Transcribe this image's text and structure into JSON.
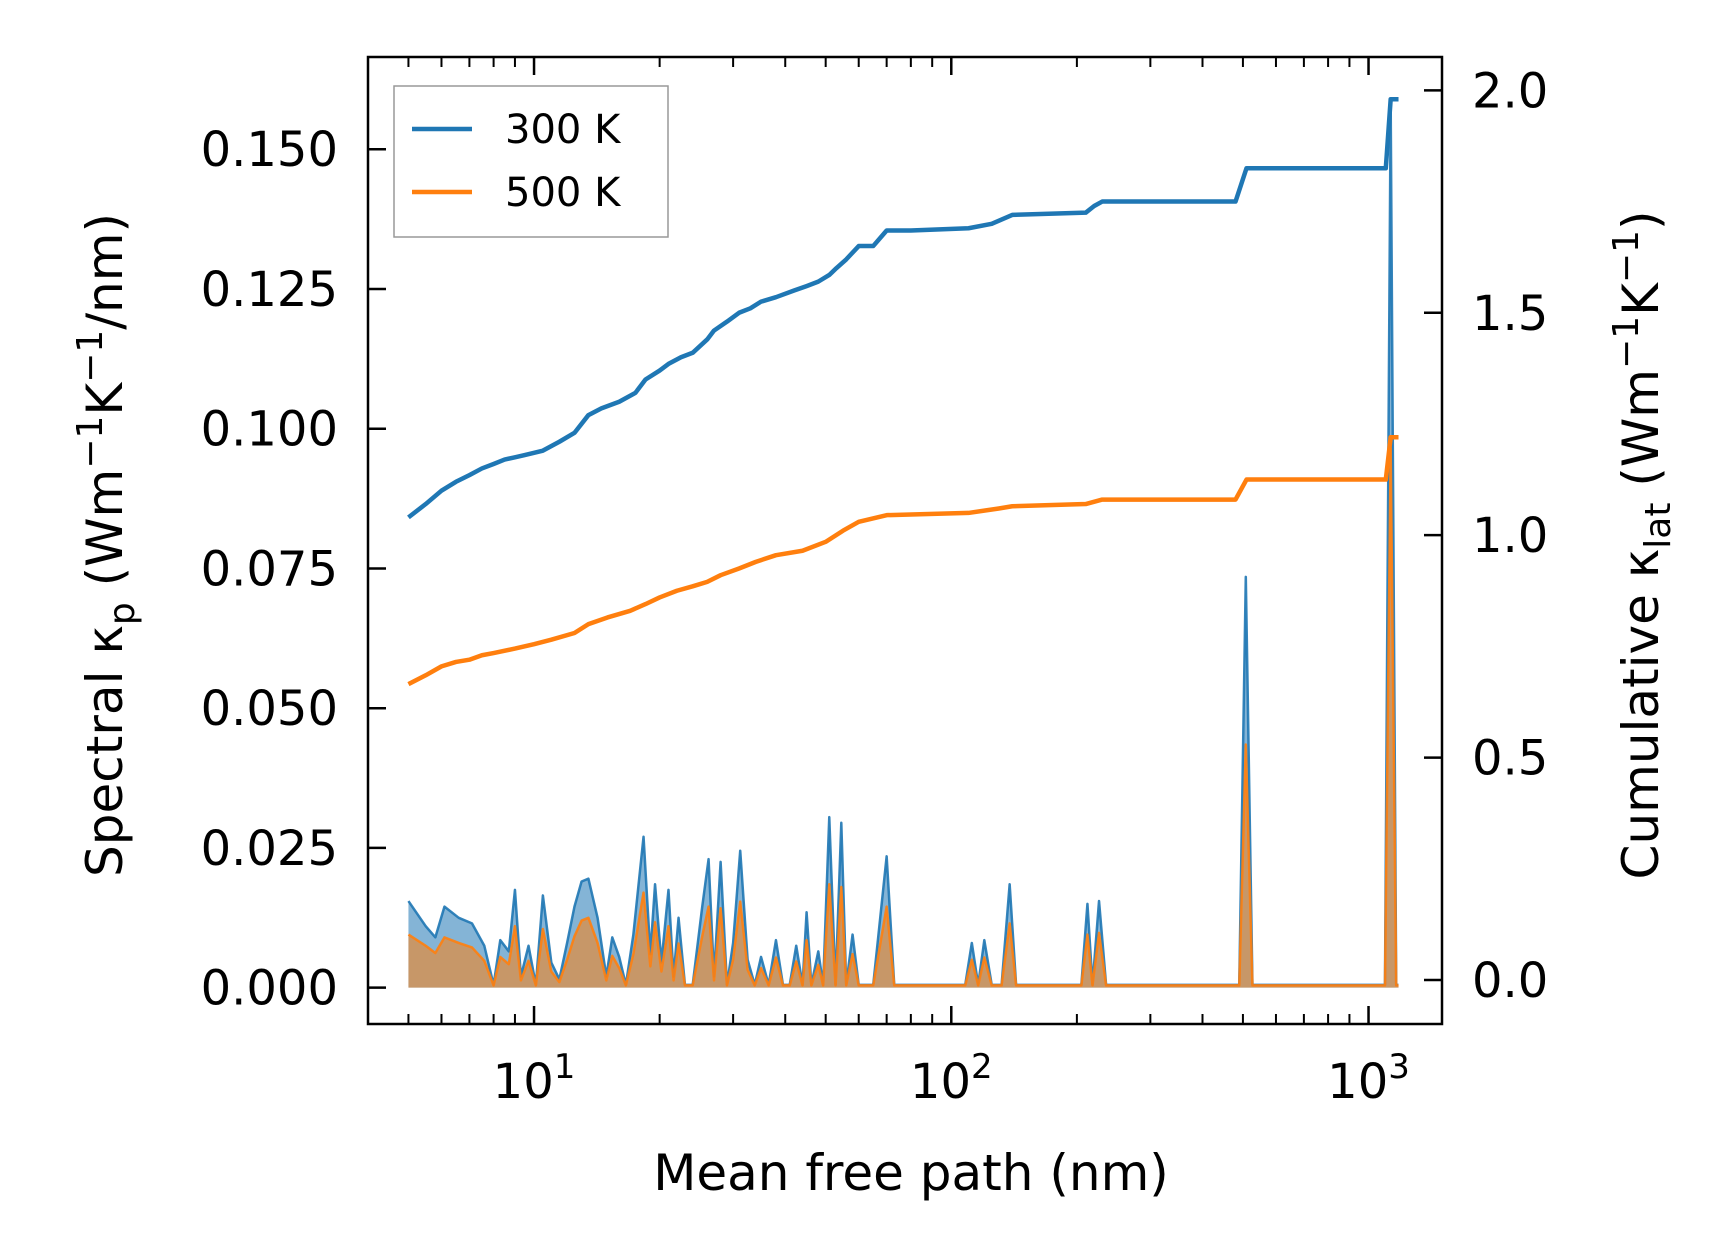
{
  "chart_data": {
    "type": "line",
    "xscale": "log",
    "xlabel": "Mean free path (nm)",
    "xlim": [
      4.0,
      1500
    ],
    "x_ticks": [
      {
        "value": 10,
        "base": "10",
        "exp": "1"
      },
      {
        "value": 100,
        "base": "10",
        "exp": "2"
      },
      {
        "value": 1000,
        "base": "10",
        "exp": "3"
      }
    ],
    "ylabel_left": {
      "main": "Spectral κ",
      "sub": "p",
      "unit_a": " (Wm",
      "sup1": "−1",
      "unit_b": "K",
      "sup2": "−1",
      "unit_c": "/nm)"
    },
    "ylim_left": [
      -0.0065,
      0.1665
    ],
    "yticks_left": [
      "0.000",
      "0.025",
      "0.050",
      "0.075",
      "0.100",
      "0.125",
      "0.150"
    ],
    "ylabel_right": {
      "main": "Cumulative κ",
      "sub": "lat",
      "unit_a": " (Wm",
      "sup1": "−1",
      "unit_b": "K",
      "sup2": "−1",
      "unit_c": ")"
    },
    "ylim_right": [
      -0.099,
      2.075
    ],
    "yticks_right": [
      "0.0",
      "0.5",
      "1.0",
      "1.5",
      "2.0"
    ],
    "legend": {
      "placement": "top-left",
      "entries": [
        {
          "label": "300 K",
          "color": "#1f77b4"
        },
        {
          "label": "500 K",
          "color": "#ff7f0e"
        }
      ]
    },
    "cumulative_series": [
      {
        "name": "300 K",
        "color": "#1f77b4",
        "points": [
          [
            5.0,
            1.04
          ],
          [
            5.5,
            1.07
          ],
          [
            6.0,
            1.1
          ],
          [
            6.5,
            1.12
          ],
          [
            7.0,
            1.135
          ],
          [
            7.5,
            1.15
          ],
          [
            8.0,
            1.16
          ],
          [
            8.5,
            1.17
          ],
          [
            9.0,
            1.175
          ],
          [
            9.5,
            1.18
          ],
          [
            10.5,
            1.19
          ],
          [
            11.5,
            1.21
          ],
          [
            12.5,
            1.23
          ],
          [
            13.5,
            1.27
          ],
          [
            14.5,
            1.285
          ],
          [
            16.0,
            1.3
          ],
          [
            17.5,
            1.32
          ],
          [
            18.5,
            1.35
          ],
          [
            20.0,
            1.37
          ],
          [
            21.0,
            1.385
          ],
          [
            22.5,
            1.4
          ],
          [
            24.0,
            1.41
          ],
          [
            26.0,
            1.44
          ],
          [
            27.0,
            1.46
          ],
          [
            29.0,
            1.48
          ],
          [
            31.0,
            1.5
          ],
          [
            33.0,
            1.51
          ],
          [
            35.0,
            1.525
          ],
          [
            38.0,
            1.535
          ],
          [
            42.0,
            1.55
          ],
          [
            45.0,
            1.56
          ],
          [
            48.0,
            1.57
          ],
          [
            51.0,
            1.585
          ],
          [
            53.0,
            1.6
          ],
          [
            56.0,
            1.62
          ],
          [
            60.0,
            1.65
          ],
          [
            65.0,
            1.65
          ],
          [
            70.0,
            1.685
          ],
          [
            80.0,
            1.685
          ],
          [
            110.0,
            1.69
          ],
          [
            125.0,
            1.7
          ],
          [
            140.0,
            1.72
          ],
          [
            210.0,
            1.725
          ],
          [
            220.0,
            1.74
          ],
          [
            230.0,
            1.75
          ],
          [
            480.0,
            1.75
          ],
          [
            510.0,
            1.825
          ],
          [
            1100.0,
            1.825
          ],
          [
            1130.0,
            1.98
          ],
          [
            1180.0,
            1.98
          ]
        ]
      },
      {
        "name": "500 K",
        "color": "#ff7f0e",
        "points": [
          [
            5.0,
            0.665
          ],
          [
            5.5,
            0.685
          ],
          [
            6.0,
            0.705
          ],
          [
            6.5,
            0.715
          ],
          [
            7.0,
            0.72
          ],
          [
            7.5,
            0.73
          ],
          [
            8.0,
            0.735
          ],
          [
            9.0,
            0.745
          ],
          [
            10.0,
            0.755
          ],
          [
            11.0,
            0.765
          ],
          [
            12.5,
            0.78
          ],
          [
            13.5,
            0.8
          ],
          [
            15.0,
            0.815
          ],
          [
            17.0,
            0.83
          ],
          [
            18.5,
            0.845
          ],
          [
            20.0,
            0.86
          ],
          [
            22.0,
            0.875
          ],
          [
            24.0,
            0.885
          ],
          [
            26.0,
            0.895
          ],
          [
            28.0,
            0.91
          ],
          [
            31.0,
            0.925
          ],
          [
            34.0,
            0.94
          ],
          [
            38.0,
            0.955
          ],
          [
            44.0,
            0.965
          ],
          [
            50.0,
            0.985
          ],
          [
            55.0,
            1.01
          ],
          [
            60.0,
            1.03
          ],
          [
            70.0,
            1.045
          ],
          [
            110.0,
            1.05
          ],
          [
            130.0,
            1.06
          ],
          [
            140.0,
            1.065
          ],
          [
            210.0,
            1.07
          ],
          [
            230.0,
            1.08
          ],
          [
            480.0,
            1.08
          ],
          [
            510.0,
            1.125
          ],
          [
            1100.0,
            1.125
          ],
          [
            1130.0,
            1.22
          ],
          [
            1180.0,
            1.22
          ]
        ]
      }
    ],
    "spectral_series": [
      {
        "name": "300 K",
        "color": "#1f77b4",
        "points": [
          [
            5.0,
            0.0155
          ],
          [
            5.5,
            0.011
          ],
          [
            5.8,
            0.009
          ],
          [
            6.1,
            0.0145
          ],
          [
            6.6,
            0.0125
          ],
          [
            7.1,
            0.0115
          ],
          [
            7.6,
            0.0075
          ],
          [
            8.0,
            0.0005
          ],
          [
            8.3,
            0.0085
          ],
          [
            8.7,
            0.0065
          ],
          [
            9.0,
            0.0175
          ],
          [
            9.3,
            0.002
          ],
          [
            9.7,
            0.0075
          ],
          [
            10.1,
            0.0005
          ],
          [
            10.5,
            0.0165
          ],
          [
            11.0,
            0.0045
          ],
          [
            11.5,
            0.0015
          ],
          [
            12.0,
            0.008
          ],
          [
            12.5,
            0.0145
          ],
          [
            13.0,
            0.019
          ],
          [
            13.5,
            0.0195
          ],
          [
            14.2,
            0.0125
          ],
          [
            14.9,
            0.002
          ],
          [
            15.4,
            0.009
          ],
          [
            16.0,
            0.0055
          ],
          [
            16.6,
            0.0005
          ],
          [
            17.3,
            0.0095
          ],
          [
            18.3,
            0.027
          ],
          [
            19.0,
            0.006
          ],
          [
            19.5,
            0.0185
          ],
          [
            20.2,
            0.0045
          ],
          [
            21.0,
            0.0175
          ],
          [
            21.6,
            0.002
          ],
          [
            22.2,
            0.0125
          ],
          [
            23.0,
            0.0005
          ],
          [
            24.0,
            0.0005
          ],
          [
            25.3,
            0.0145
          ],
          [
            26.2,
            0.023
          ],
          [
            27.0,
            0.002
          ],
          [
            28.0,
            0.0225
          ],
          [
            29.0,
            0.0005
          ],
          [
            30.0,
            0.008
          ],
          [
            31.2,
            0.0245
          ],
          [
            32.5,
            0.005
          ],
          [
            33.8,
            0.0005
          ],
          [
            35.0,
            0.0055
          ],
          [
            36.5,
            0.0005
          ],
          [
            38.0,
            0.0085
          ],
          [
            39.5,
            0.0005
          ],
          [
            41.0,
            0.0005
          ],
          [
            42.5,
            0.0075
          ],
          [
            44.0,
            0.0005
          ],
          [
            45.0,
            0.0135
          ],
          [
            46.2,
            0.0005
          ],
          [
            48.0,
            0.0065
          ],
          [
            49.3,
            0.0005
          ],
          [
            51.0,
            0.0305
          ],
          [
            52.8,
            0.0005
          ],
          [
            54.5,
            0.0295
          ],
          [
            56.0,
            0.0005
          ],
          [
            58.0,
            0.0095
          ],
          [
            60.0,
            0.0005
          ],
          [
            62.0,
            0.0005
          ],
          [
            65.0,
            0.0005
          ],
          [
            70.0,
            0.0235
          ],
          [
            73.0,
            0.0005
          ],
          [
            75.0,
            0.0005
          ],
          [
            108.0,
            0.0005
          ],
          [
            112.0,
            0.008
          ],
          [
            116.0,
            0.0005
          ],
          [
            120.0,
            0.0085
          ],
          [
            125.0,
            0.0005
          ],
          [
            132.0,
            0.0005
          ],
          [
            138.0,
            0.0185
          ],
          [
            143.0,
            0.0005
          ],
          [
            205.0,
            0.0005
          ],
          [
            212.0,
            0.015
          ],
          [
            218.0,
            0.0005
          ],
          [
            226.0,
            0.0155
          ],
          [
            235.0,
            0.0005
          ],
          [
            490.0,
            0.0005
          ],
          [
            508.0,
            0.0735
          ],
          [
            527.0,
            0.0005
          ],
          [
            1095.0,
            0.0005
          ],
          [
            1130.0,
            0.1585
          ],
          [
            1165.0,
            0.0005
          ],
          [
            1180.0,
            0.0005
          ]
        ]
      },
      {
        "name": "500 K",
        "color": "#ff7f0e",
        "points": [
          [
            5.0,
            0.0095
          ],
          [
            5.5,
            0.0075
          ],
          [
            5.8,
            0.0062
          ],
          [
            6.1,
            0.009
          ],
          [
            6.6,
            0.008
          ],
          [
            7.1,
            0.0072
          ],
          [
            7.6,
            0.0048
          ],
          [
            8.0,
            0.0004
          ],
          [
            8.3,
            0.0055
          ],
          [
            8.7,
            0.0042
          ],
          [
            9.0,
            0.011
          ],
          [
            9.3,
            0.0013
          ],
          [
            9.7,
            0.0048
          ],
          [
            10.1,
            0.0004
          ],
          [
            10.5,
            0.0105
          ],
          [
            11.0,
            0.0029
          ],
          [
            11.5,
            0.001
          ],
          [
            12.0,
            0.005
          ],
          [
            12.5,
            0.0092
          ],
          [
            13.0,
            0.012
          ],
          [
            13.5,
            0.0125
          ],
          [
            14.2,
            0.008
          ],
          [
            14.9,
            0.0013
          ],
          [
            15.4,
            0.0057
          ],
          [
            16.0,
            0.0035
          ],
          [
            16.6,
            0.0004
          ],
          [
            17.3,
            0.006
          ],
          [
            18.3,
            0.017
          ],
          [
            19.0,
            0.0038
          ],
          [
            19.5,
            0.0117
          ],
          [
            20.2,
            0.0029
          ],
          [
            21.0,
            0.011
          ],
          [
            21.6,
            0.0013
          ],
          [
            22.2,
            0.0079
          ],
          [
            23.0,
            0.0004
          ],
          [
            24.0,
            0.0004
          ],
          [
            25.3,
            0.0092
          ],
          [
            26.2,
            0.0145
          ],
          [
            27.0,
            0.0013
          ],
          [
            28.0,
            0.0142
          ],
          [
            29.0,
            0.0004
          ],
          [
            30.0,
            0.005
          ],
          [
            31.2,
            0.0154
          ],
          [
            32.5,
            0.0032
          ],
          [
            33.8,
            0.0004
          ],
          [
            35.0,
            0.0035
          ],
          [
            36.5,
            0.0004
          ],
          [
            38.0,
            0.0054
          ],
          [
            39.5,
            0.0004
          ],
          [
            41.0,
            0.0004
          ],
          [
            42.5,
            0.0047
          ],
          [
            44.0,
            0.0004
          ],
          [
            45.0,
            0.0085
          ],
          [
            46.2,
            0.0004
          ],
          [
            48.0,
            0.0041
          ],
          [
            49.3,
            0.0004
          ],
          [
            51.0,
            0.0185
          ],
          [
            52.8,
            0.0004
          ],
          [
            54.5,
            0.018
          ],
          [
            56.0,
            0.0004
          ],
          [
            58.0,
            0.006
          ],
          [
            60.0,
            0.0004
          ],
          [
            62.0,
            0.0004
          ],
          [
            65.0,
            0.0004
          ],
          [
            70.0,
            0.0145
          ],
          [
            73.0,
            0.0004
          ],
          [
            75.0,
            0.0004
          ],
          [
            108.0,
            0.0004
          ],
          [
            112.0,
            0.005
          ],
          [
            116.0,
            0.0004
          ],
          [
            120.0,
            0.0054
          ],
          [
            125.0,
            0.0004
          ],
          [
            132.0,
            0.0004
          ],
          [
            138.0,
            0.0115
          ],
          [
            143.0,
            0.0004
          ],
          [
            205.0,
            0.0004
          ],
          [
            212.0,
            0.0095
          ],
          [
            218.0,
            0.0004
          ],
          [
            226.0,
            0.0098
          ],
          [
            235.0,
            0.0004
          ],
          [
            490.0,
            0.0004
          ],
          [
            508.0,
            0.0435
          ],
          [
            527.0,
            0.0004
          ],
          [
            1095.0,
            0.0004
          ],
          [
            1130.0,
            0.0965
          ],
          [
            1165.0,
            0.0004
          ],
          [
            1180.0,
            0.0004
          ]
        ]
      }
    ]
  }
}
